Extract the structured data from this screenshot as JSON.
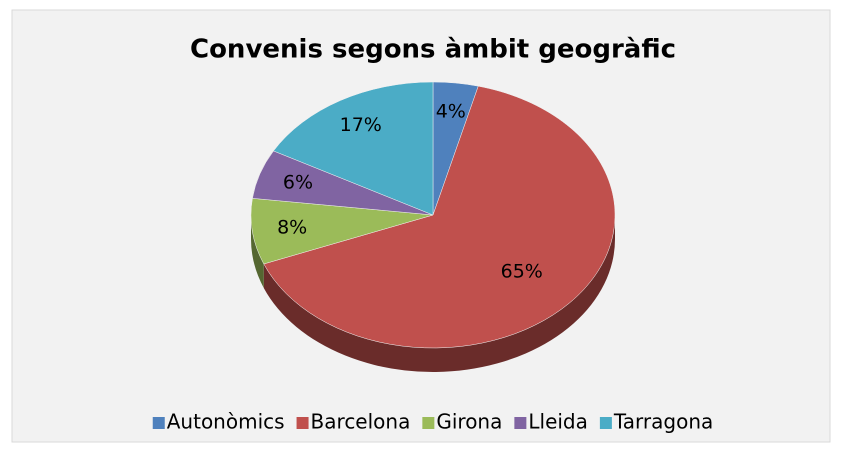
{
  "chart_data": {
    "type": "pie",
    "title": "Convenis segons àmbit geogràfic",
    "categories": [
      "Autonòmics",
      "Barcelona",
      "Girona",
      "Lleida",
      "Tarragona"
    ],
    "values": [
      4,
      65,
      8,
      6,
      17
    ],
    "value_labels": [
      "4%",
      "65%",
      "8%",
      "6%",
      "17%"
    ],
    "colors": [
      "#4f81bd",
      "#c0504d",
      "#9bbb59",
      "#8064a2",
      "#4bacc6"
    ],
    "legend": "bottom"
  }
}
